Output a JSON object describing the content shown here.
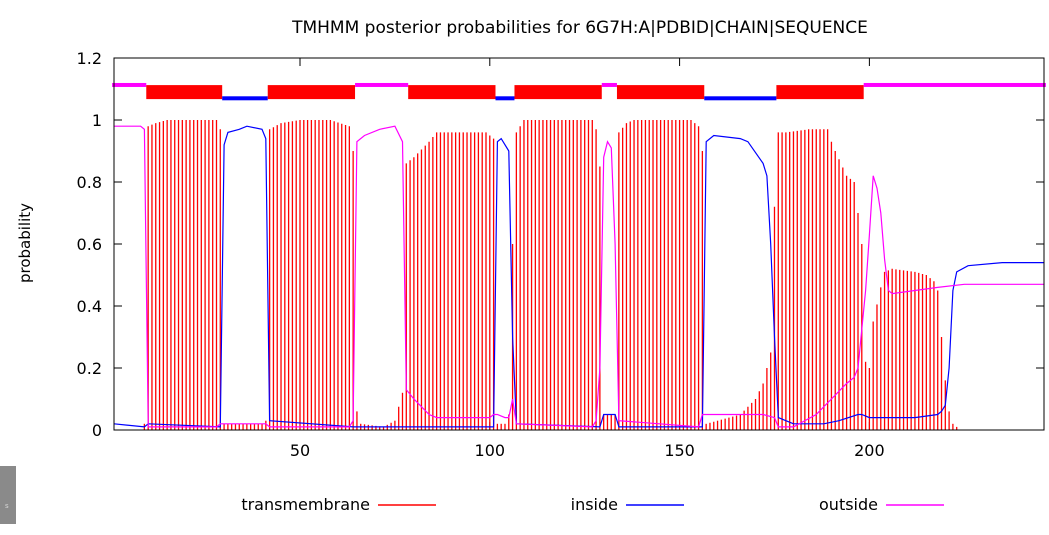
{
  "chart_data": {
    "type": "line",
    "title": "TMHMM posterior probabilities for 6G7H:A|PDBID|CHAIN|SEQUENCE",
    "xlabel": "",
    "ylabel": "probability",
    "xlim": [
      1,
      246
    ],
    "ylim": [
      0,
      1.2
    ],
    "xticks": [
      "50",
      "100",
      "150",
      "200"
    ],
    "yticks": [
      "0",
      "0.2",
      "0.4",
      "0.6",
      "0.8",
      "1",
      "1.2"
    ],
    "grid": false,
    "legend_position": "bottom",
    "colors": {
      "transmembrane": "#ff0000",
      "inside": "#0000ff",
      "outside": "#ff00ff"
    },
    "legend": [
      "transmembrane",
      "inside",
      "outside"
    ],
    "topology": [
      {
        "type": "outside",
        "start": 1,
        "end": 9
      },
      {
        "type": "transmembrane",
        "start": 10,
        "end": 29
      },
      {
        "type": "inside",
        "start": 30,
        "end": 41
      },
      {
        "type": "transmembrane",
        "start": 42,
        "end": 64
      },
      {
        "type": "outside",
        "start": 65,
        "end": 78
      },
      {
        "type": "transmembrane",
        "start": 79,
        "end": 101
      },
      {
        "type": "inside",
        "start": 102,
        "end": 106
      },
      {
        "type": "transmembrane",
        "start": 107,
        "end": 129
      },
      {
        "type": "outside",
        "start": 130,
        "end": 133
      },
      {
        "type": "transmembrane",
        "start": 134,
        "end": 156
      },
      {
        "type": "inside",
        "start": 157,
        "end": 175
      },
      {
        "type": "transmembrane",
        "start": 176,
        "end": 198
      },
      {
        "type": "outside",
        "start": 199,
        "end": 246
      }
    ],
    "series": [
      {
        "name": "transmembrane",
        "style": "impulses",
        "points": [
          [
            1,
            0
          ],
          [
            8,
            0
          ],
          [
            9,
            0.02
          ],
          [
            10,
            0.98
          ],
          [
            12,
            0.99
          ],
          [
            15,
            1.0
          ],
          [
            28,
            1.0
          ],
          [
            29,
            0.97
          ],
          [
            30,
            0.02
          ],
          [
            40,
            0.02
          ],
          [
            41,
            0.03
          ],
          [
            42,
            0.97
          ],
          [
            45,
            0.99
          ],
          [
            50,
            1.0
          ],
          [
            58,
            1.0
          ],
          [
            63,
            0.98
          ],
          [
            64,
            0.9
          ],
          [
            65,
            0.06
          ],
          [
            66,
            0.02
          ],
          [
            72,
            0.01
          ],
          [
            75,
            0.03
          ],
          [
            77,
            0.12
          ],
          [
            78,
            0.86
          ],
          [
            80,
            0.88
          ],
          [
            84,
            0.93
          ],
          [
            86,
            0.96
          ],
          [
            99,
            0.96
          ],
          [
            101,
            0.94
          ],
          [
            102,
            0.02
          ],
          [
            104,
            0.02
          ],
          [
            105,
            0.05
          ],
          [
            106,
            0.6
          ],
          [
            107,
            0.96
          ],
          [
            109,
            1.0
          ],
          [
            127,
            1.0
          ],
          [
            128,
            0.97
          ],
          [
            129,
            0.85
          ],
          [
            130,
            0.05
          ],
          [
            133,
            0.05
          ],
          [
            134,
            0.96
          ],
          [
            136,
            0.99
          ],
          [
            138,
            1.0
          ],
          [
            153,
            1.0
          ],
          [
            155,
            0.98
          ],
          [
            156,
            0.9
          ],
          [
            157,
            0.02
          ],
          [
            166,
            0.05
          ],
          [
            170,
            0.1
          ],
          [
            172,
            0.15
          ],
          [
            174,
            0.25
          ],
          [
            175,
            0.72
          ],
          [
            176,
            0.96
          ],
          [
            178,
            0.96
          ],
          [
            184,
            0.97
          ],
          [
            189,
            0.97
          ],
          [
            190,
            0.93
          ],
          [
            191,
            0.9
          ],
          [
            194,
            0.82
          ],
          [
            196,
            0.8
          ],
          [
            198,
            0.6
          ],
          [
            199,
            0.22
          ],
          [
            200,
            0.2
          ],
          [
            201,
            0.35
          ],
          [
            203,
            0.46
          ],
          [
            204,
            0.51
          ],
          [
            206,
            0.52
          ],
          [
            212,
            0.51
          ],
          [
            215,
            0.5
          ],
          [
            217,
            0.48
          ],
          [
            218,
            0.45
          ],
          [
            219,
            0.3
          ],
          [
            220,
            0.16
          ],
          [
            221,
            0.06
          ],
          [
            222,
            0.02
          ],
          [
            223,
            0.01
          ],
          [
            224,
            0
          ]
        ]
      },
      {
        "name": "inside",
        "style": "line",
        "points": [
          [
            1,
            0.02
          ],
          [
            9,
            0.01
          ],
          [
            10,
            0.02
          ],
          [
            29,
            0.01
          ],
          [
            30,
            0.92
          ],
          [
            31,
            0.96
          ],
          [
            34,
            0.97
          ],
          [
            36,
            0.98
          ],
          [
            40,
            0.97
          ],
          [
            41,
            0.94
          ],
          [
            42,
            0.03
          ],
          [
            64,
            0.01
          ],
          [
            78,
            0.01
          ],
          [
            90,
            0.01
          ],
          [
            101,
            0.01
          ],
          [
            102,
            0.93
          ],
          [
            103,
            0.94
          ],
          [
            105,
            0.9
          ],
          [
            106,
            0.3
          ],
          [
            107,
            0.02
          ],
          [
            129,
            0.01
          ],
          [
            130,
            0.05
          ],
          [
            133,
            0.05
          ],
          [
            134,
            0.01
          ],
          [
            156,
            0.01
          ],
          [
            157,
            0.93
          ],
          [
            159,
            0.95
          ],
          [
            166,
            0.94
          ],
          [
            168,
            0.93
          ],
          [
            172,
            0.86
          ],
          [
            173,
            0.82
          ],
          [
            174,
            0.6
          ],
          [
            175,
            0.3
          ],
          [
            176,
            0.04
          ],
          [
            180,
            0.02
          ],
          [
            188,
            0.02
          ],
          [
            192,
            0.03
          ],
          [
            197,
            0.05
          ],
          [
            198,
            0.05
          ],
          [
            200,
            0.04
          ],
          [
            205,
            0.04
          ],
          [
            212,
            0.04
          ],
          [
            218,
            0.05
          ],
          [
            219,
            0.06
          ],
          [
            220,
            0.08
          ],
          [
            221,
            0.2
          ],
          [
            222,
            0.45
          ],
          [
            223,
            0.51
          ],
          [
            226,
            0.53
          ],
          [
            235,
            0.54
          ],
          [
            246,
            0.54
          ]
        ]
      },
      {
        "name": "outside",
        "style": "line",
        "points": [
          [
            1,
            0.98
          ],
          [
            8,
            0.98
          ],
          [
            9,
            0.97
          ],
          [
            10,
            0.01
          ],
          [
            28,
            0.01
          ],
          [
            29,
            0.02
          ],
          [
            30,
            0.02
          ],
          [
            40,
            0.02
          ],
          [
            41,
            0.02
          ],
          [
            42,
            0.01
          ],
          [
            63,
            0.01
          ],
          [
            64,
            0.03
          ],
          [
            65,
            0.93
          ],
          [
            67,
            0.95
          ],
          [
            71,
            0.97
          ],
          [
            75,
            0.98
          ],
          [
            77,
            0.93
          ],
          [
            78,
            0.13
          ],
          [
            80,
            0.1
          ],
          [
            84,
            0.05
          ],
          [
            86,
            0.04
          ],
          [
            100,
            0.04
          ],
          [
            101,
            0.05
          ],
          [
            102,
            0.05
          ],
          [
            104,
            0.04
          ],
          [
            105,
            0.04
          ],
          [
            106,
            0.1
          ],
          [
            107,
            0.02
          ],
          [
            127,
            0.01
          ],
          [
            128,
            0.03
          ],
          [
            129,
            0.2
          ],
          [
            130,
            0.88
          ],
          [
            131,
            0.93
          ],
          [
            132,
            0.91
          ],
          [
            133,
            0.6
          ],
          [
            134,
            0.03
          ],
          [
            155,
            0.01
          ],
          [
            156,
            0.05
          ],
          [
            157,
            0.05
          ],
          [
            172,
            0.05
          ],
          [
            175,
            0.04
          ],
          [
            176,
            0.01
          ],
          [
            180,
            0.01
          ],
          [
            186,
            0.05
          ],
          [
            190,
            0.1
          ],
          [
            194,
            0.15
          ],
          [
            196,
            0.17
          ],
          [
            197,
            0.2
          ],
          [
            199,
            0.45
          ],
          [
            200,
            0.63
          ],
          [
            201,
            0.82
          ],
          [
            202,
            0.78
          ],
          [
            203,
            0.7
          ],
          [
            204,
            0.55
          ],
          [
            205,
            0.45
          ],
          [
            206,
            0.44
          ],
          [
            212,
            0.45
          ],
          [
            218,
            0.46
          ],
          [
            225,
            0.47
          ],
          [
            235,
            0.47
          ],
          [
            246,
            0.47
          ]
        ]
      }
    ]
  }
}
